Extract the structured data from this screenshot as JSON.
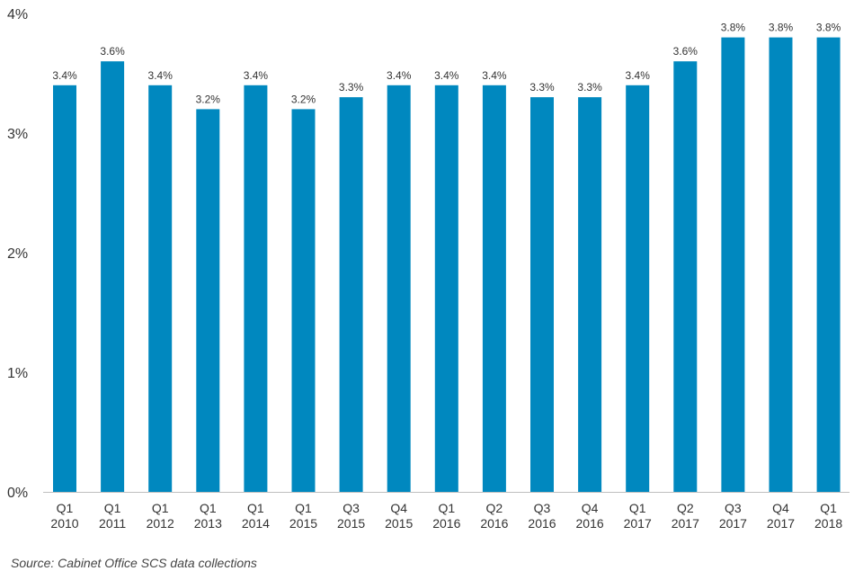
{
  "colors": {
    "bar": "#0088bf",
    "axis": "#bfbfbf",
    "text": "#333333"
  },
  "chart_data": {
    "type": "bar",
    "categories": [
      [
        "Q1",
        "2010"
      ],
      [
        "Q1",
        "2011"
      ],
      [
        "Q1",
        "2012"
      ],
      [
        "Q1",
        "2013"
      ],
      [
        "Q1",
        "2014"
      ],
      [
        "Q1",
        "2015"
      ],
      [
        "Q3",
        "2015"
      ],
      [
        "Q4",
        "2015"
      ],
      [
        "Q1",
        "2016"
      ],
      [
        "Q2",
        "2016"
      ],
      [
        "Q3",
        "2016"
      ],
      [
        "Q4",
        "2016"
      ],
      [
        "Q1",
        "2017"
      ],
      [
        "Q2",
        "2017"
      ],
      [
        "Q3",
        "2017"
      ],
      [
        "Q4",
        "2017"
      ],
      [
        "Q1",
        "2018"
      ]
    ],
    "values": [
      3.4,
      3.6,
      3.4,
      3.2,
      3.4,
      3.2,
      3.3,
      3.4,
      3.4,
      3.4,
      3.3,
      3.3,
      3.4,
      3.6,
      3.8,
      3.8,
      3.8
    ],
    "data_labels": [
      "3.4%",
      "3.6%",
      "3.4%",
      "3.2%",
      "3.4%",
      "3.2%",
      "3.3%",
      "3.4%",
      "3.4%",
      "3.4%",
      "3.3%",
      "3.3%",
      "3.4%",
      "3.6%",
      "3.8%",
      "3.8%",
      "3.8%"
    ],
    "yticks": [
      0,
      1,
      2,
      3,
      4
    ],
    "ytick_labels": [
      "0%",
      "1%",
      "2%",
      "3%",
      "4%"
    ],
    "ylim": [
      0,
      4
    ],
    "grid": false,
    "legend": "none"
  },
  "source": "Source: Cabinet Office SCS data collections"
}
